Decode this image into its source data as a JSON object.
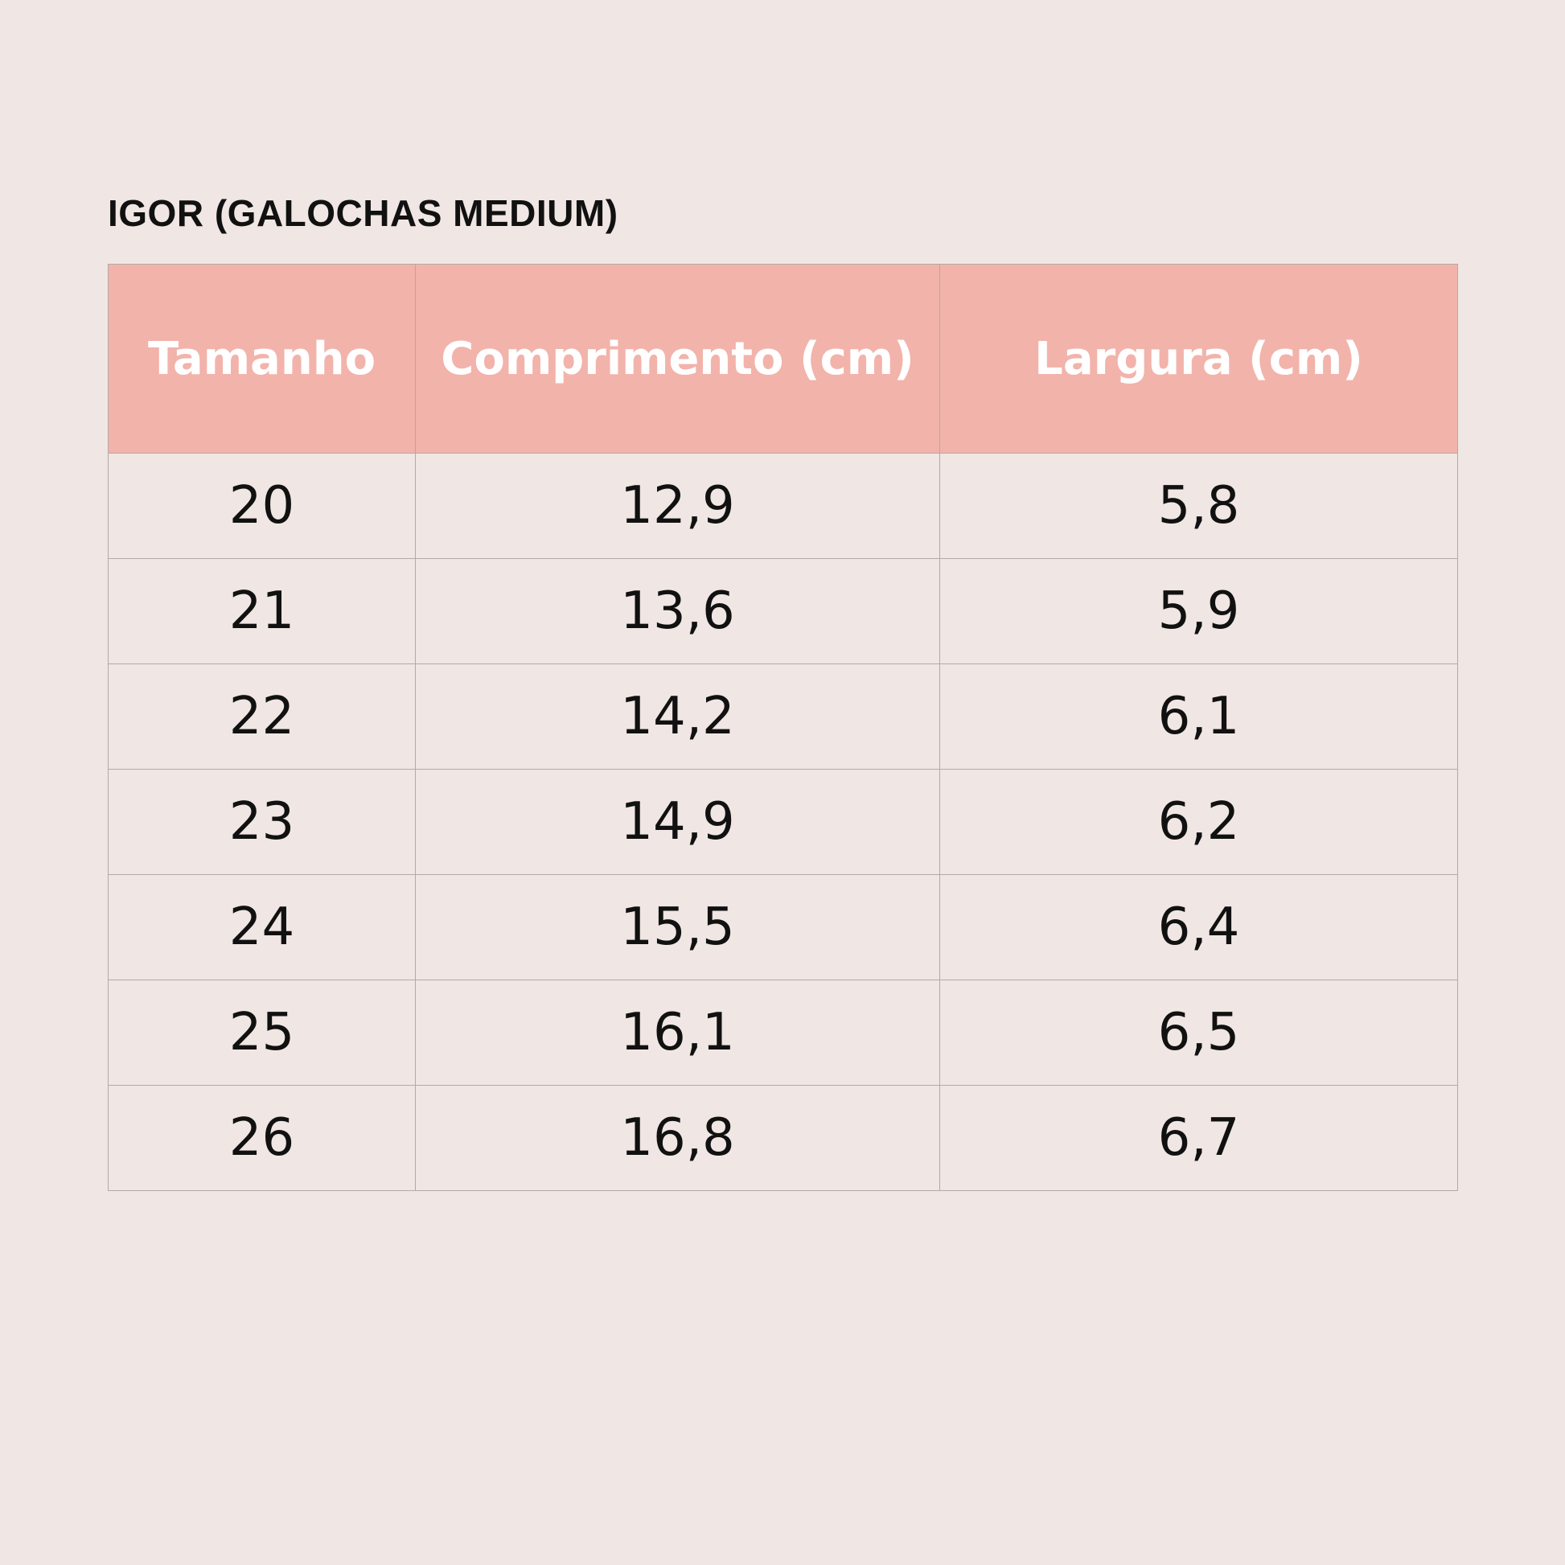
{
  "title": "IGOR (GALOCHAS MEDIUM)",
  "table": {
    "header": [
      "Tamanho",
      "Comprimento (cm)",
      "Largura (cm)"
    ],
    "rows": [
      [
        "20",
        "12,9",
        "5,8"
      ],
      [
        "21",
        "13,6",
        "5,9"
      ],
      [
        "22",
        "14,2",
        "6,1"
      ],
      [
        "23",
        "14,9",
        "6,2"
      ],
      [
        "24",
        "15,5",
        "6,4"
      ],
      [
        "25",
        "16,1",
        "6,5"
      ],
      [
        "26",
        "16,8",
        "6,7"
      ]
    ]
  }
}
